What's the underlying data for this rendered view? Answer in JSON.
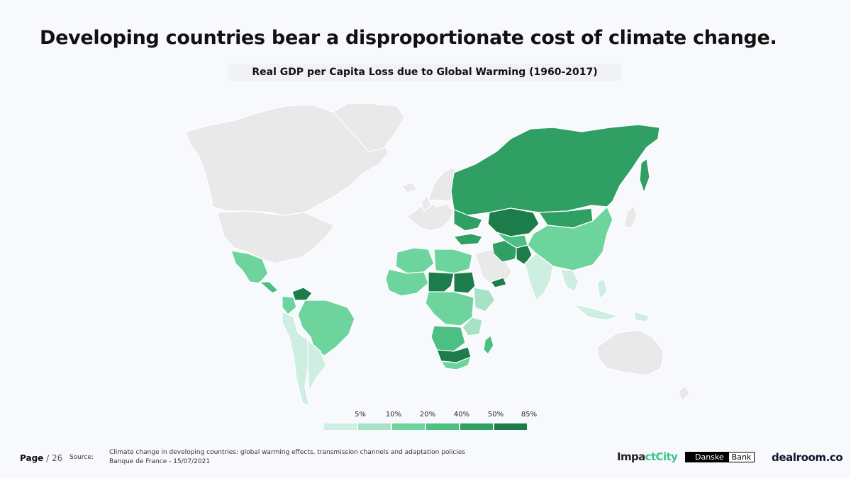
{
  "title": "Developing countries bear a disproportionate cost of climate change.",
  "subtitle": "Real GDP per Capita Loss due to Global Warming (1960-2017)",
  "legend": {
    "labels": [
      "5%",
      "10%",
      "20%",
      "40%",
      "50%",
      "85%"
    ],
    "colors": [
      "#cfeee2",
      "#a6e3c6",
      "#6ed49d",
      "#4cbf82",
      "#2f9f63",
      "#1c7c4a"
    ]
  },
  "colors": {
    "no_data": "#e9e9ea",
    "background": "#f8f9fc"
  },
  "footer": {
    "page_label": "Page",
    "page_number": "/ 26",
    "source_label": "Source:",
    "source_line1": "Climate change in developing countries: global warming effects, transmission channels and adaptation policies",
    "source_line2": "Banque de France - 15/07/2021",
    "logo_impactcity_a": "Impa",
    "logo_impactcity_b": "ctCity",
    "logo_danske_a": "Danske",
    "logo_danske_b": "Bank",
    "logo_dealroom": "dealroom.co"
  }
}
